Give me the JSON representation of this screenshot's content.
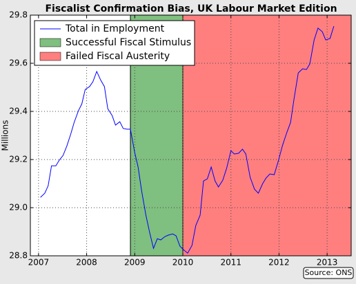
{
  "chart_data": {
    "type": "line",
    "title": "Fiscalist Confirmation Bias, UK Labour Market Edition",
    "y_label": "Millions",
    "source": "Source: ONS",
    "xlim": [
      2006.83,
      2013.5
    ],
    "xticks": [
      2007,
      2008,
      2009,
      2010,
      2011,
      2012,
      2013
    ],
    "ylim": [
      28.8,
      29.8
    ],
    "yticks": [
      28.8,
      {
        "value": 29,
        "label": "29.0"
      },
      29.2,
      29.4,
      29.6,
      29.8
    ],
    "grid": true,
    "legend": "upper left",
    "spans": [
      {
        "name": "Successful Fiscal Stimulus",
        "color": "#7fbf7f",
        "range": [
          2008.91,
          2010
        ]
      },
      {
        "name": "Failed Fiscal Austerity",
        "color": "#ff7f7f",
        "range": [
          2010,
          2013.5
        ]
      }
    ],
    "series": [
      {
        "name": "Total in Employment",
        "color": "#0000ff",
        "x": [
          2007.04,
          2007.13,
          2007.2,
          2007.27,
          2007.36,
          2007.43,
          2007.51,
          2007.59,
          2007.67,
          2007.74,
          2007.83,
          2007.9,
          2007.97,
          2008.06,
          2008.13,
          2008.21,
          2008.29,
          2008.37,
          2008.44,
          2008.53,
          2008.6,
          2008.69,
          2008.76,
          2008.84,
          2008.91,
          2009.0,
          2009.07,
          2009.14,
          2009.23,
          2009.31,
          2009.39,
          2009.47,
          2009.54,
          2009.63,
          2009.7,
          2009.79,
          2009.86,
          2009.94,
          2010.01,
          2010.1,
          2010.19,
          2010.27,
          2010.36,
          2010.43,
          2010.51,
          2010.59,
          2010.67,
          2010.74,
          2010.83,
          2010.91,
          2011.0,
          2011.07,
          2011.16,
          2011.24,
          2011.31,
          2011.4,
          2011.49,
          2011.57,
          2011.66,
          2011.73,
          2011.81,
          2011.9,
          2011.99,
          2012.07,
          2012.16,
          2012.24,
          2012.31,
          2012.4,
          2012.49,
          2012.57,
          2012.64,
          2012.73,
          2012.81,
          2012.9,
          2012.97,
          2013.06,
          2013.14
        ],
        "values": [
          29.043,
          29.06,
          29.091,
          29.174,
          29.174,
          29.197,
          29.217,
          29.257,
          29.306,
          29.354,
          29.403,
          29.431,
          29.491,
          29.503,
          29.523,
          29.566,
          29.531,
          29.503,
          29.411,
          29.383,
          29.343,
          29.357,
          29.329,
          29.326,
          29.326,
          29.229,
          29.169,
          29.074,
          28.971,
          28.897,
          28.831,
          28.871,
          28.866,
          28.88,
          28.886,
          28.891,
          28.883,
          28.84,
          28.826,
          28.811,
          28.843,
          28.926,
          28.969,
          29.111,
          29.12,
          29.169,
          29.111,
          29.086,
          29.114,
          29.163,
          29.237,
          29.223,
          29.226,
          29.243,
          29.223,
          29.126,
          29.077,
          29.06,
          29.1,
          29.123,
          29.14,
          29.137,
          29.197,
          29.257,
          29.311,
          29.354,
          29.449,
          29.56,
          29.577,
          29.574,
          29.597,
          29.697,
          29.746,
          29.731,
          29.697,
          29.703,
          29.754
        ]
      }
    ]
  }
}
